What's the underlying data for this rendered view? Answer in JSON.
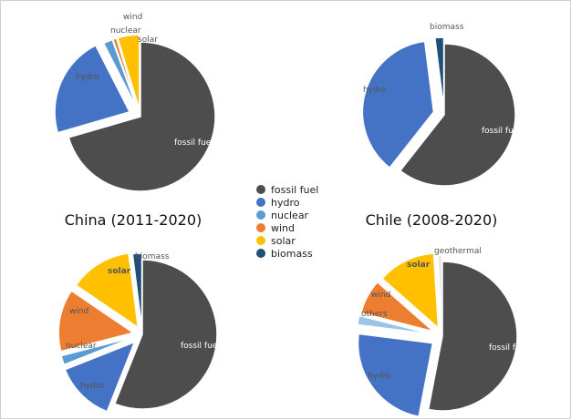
{
  "colors": {
    "fossil fuel": "#4d4d4d",
    "hydro": "#4472c4",
    "nuclear": "#5b9bd5",
    "wind": "#ed7d31",
    "solar": "#ffc000",
    "biomass": "#1f4e79",
    "others": "#9dc3e6",
    "geothermal": "#e8e8e8"
  },
  "legend": {
    "items": [
      {
        "name": "fossil fuel",
        "label": "fossil fuel"
      },
      {
        "name": "hydro",
        "label": "hydro"
      },
      {
        "name": "nuclear",
        "label": "nuclear"
      },
      {
        "name": "wind",
        "label": "wind"
      },
      {
        "name": "solar",
        "label": "solar"
      },
      {
        "name": "biomass",
        "label": "biomass"
      }
    ]
  },
  "chart_data": [
    {
      "type": "pie",
      "title": "China (2011-2020)",
      "slices": [
        {
          "name": "fossil fuel",
          "label": "fossil fuel",
          "value": 70.5
        },
        {
          "name": "hydro",
          "label": "hydro",
          "value": 22.0
        },
        {
          "name": "nuclear",
          "label": "nuclear",
          "value": 2.0
        },
        {
          "name": "wind",
          "label": "wind",
          "value": 0.8
        },
        {
          "name": "solar",
          "label": "solar",
          "value": 4.7
        }
      ]
    },
    {
      "type": "pie",
      "title": "Chile (2008-2020)",
      "slices": [
        {
          "name": "fossil fuel",
          "label": "fossil fuel",
          "value": 60.6
        },
        {
          "name": "hydro",
          "label": "hydro",
          "value": 37.4
        },
        {
          "name": "biomass",
          "label": "biomass",
          "value": 2.0
        }
      ]
    },
    {
      "type": "pie",
      "title": "",
      "slices": [
        {
          "name": "fossil fuel",
          "label": "fossil fuel",
          "value": 56.0
        },
        {
          "name": "hydro",
          "label": "hydro",
          "value": 13.0
        },
        {
          "name": "nuclear",
          "label": "nuclear",
          "value": 2.0
        },
        {
          "name": "wind",
          "label": "wind",
          "value": 13.5
        },
        {
          "name": "solar",
          "label": "solar",
          "value": 13.5
        },
        {
          "name": "biomass",
          "label": "biomass",
          "value": 2.0
        }
      ]
    },
    {
      "type": "pie",
      "title": "",
      "slices": [
        {
          "name": "fossil fuel",
          "label": "fossil fuel",
          "value": 53.0
        },
        {
          "name": "hydro",
          "label": "hydro",
          "value": 24.0
        },
        {
          "name": "others",
          "label": "others",
          "value": 2.0
        },
        {
          "name": "wind",
          "label": "wind",
          "value": 7.5
        },
        {
          "name": "solar",
          "label": "solar",
          "value": 12.5
        },
        {
          "name": "geothermal",
          "label": "geothermal",
          "value": 1.0
        }
      ]
    }
  ]
}
